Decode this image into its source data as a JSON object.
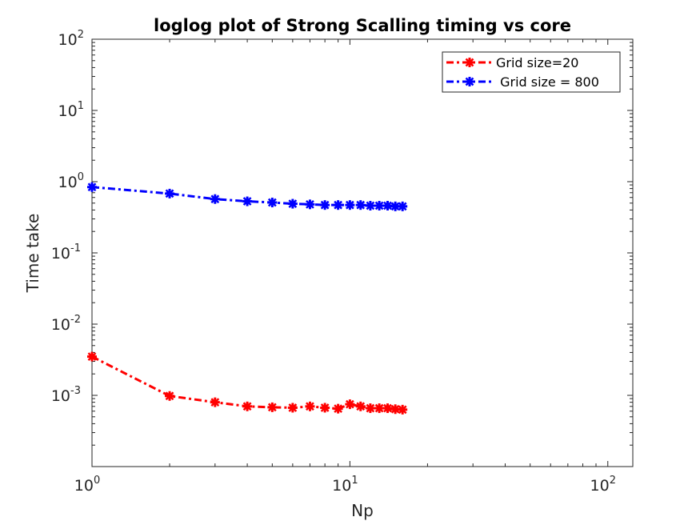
{
  "chart_data": {
    "type": "line",
    "title": "loglog plot of Strong Scalling timing vs core",
    "xlabel": "Np",
    "ylabel": "Time take",
    "xscale": "log",
    "yscale": "log",
    "xlim": [
      1,
      125
    ],
    "ylim": [
      0.0001,
      100
    ],
    "xticks": [
      {
        "value": 1,
        "base": "10",
        "exp": "0"
      },
      {
        "value": 10,
        "base": "10",
        "exp": "1"
      },
      {
        "value": 100,
        "base": "10",
        "exp": "2"
      }
    ],
    "yticks": [
      {
        "value": 0.001,
        "base": "10",
        "exp": "-3"
      },
      {
        "value": 0.01,
        "base": "10",
        "exp": "-2"
      },
      {
        "value": 0.1,
        "base": "10",
        "exp": "-1"
      },
      {
        "value": 1,
        "base": "10",
        "exp": "0"
      },
      {
        "value": 10,
        "base": "10",
        "exp": "1"
      },
      {
        "value": 100,
        "base": "10",
        "exp": "2"
      }
    ],
    "grid": false,
    "legend_position": "top-right",
    "x": [
      1,
      2,
      3,
      4,
      5,
      6,
      7,
      8,
      9,
      10,
      11,
      12,
      13,
      14,
      15,
      16
    ],
    "series": [
      {
        "name": "Grid size=20",
        "color": "#ff0000",
        "values": [
          0.0035,
          0.00098,
          0.0008,
          0.0007,
          0.00068,
          0.00067,
          0.0007,
          0.00067,
          0.00065,
          0.00075,
          0.0007,
          0.00066,
          0.00066,
          0.00066,
          0.00064,
          0.00063
        ]
      },
      {
        "name": " Grid size = 800",
        "color": "#0000ff",
        "values": [
          0.84,
          0.68,
          0.57,
          0.53,
          0.51,
          0.49,
          0.48,
          0.47,
          0.47,
          0.47,
          0.47,
          0.46,
          0.46,
          0.46,
          0.45,
          0.45
        ]
      }
    ]
  }
}
